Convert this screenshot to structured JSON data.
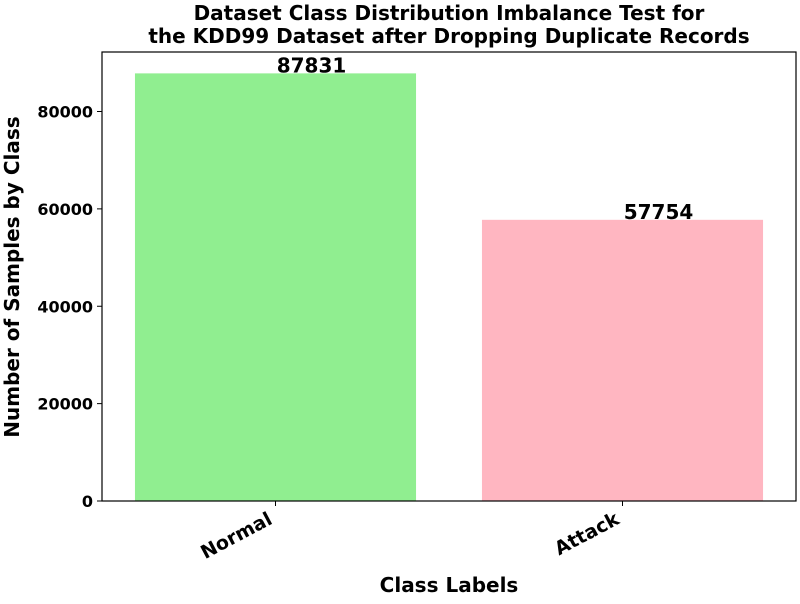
{
  "chart_data": {
    "type": "bar",
    "title": [
      "Dataset Class Distribution Imbalance Test for",
      "the KDD99 Dataset after Dropping Duplicate Records"
    ],
    "xlabel": "Class Labels",
    "ylabel": "Number of Samples by Class",
    "categories": [
      "Normal",
      "Attack"
    ],
    "values": [
      87831,
      57754
    ],
    "data_labels": [
      "87831",
      "57754"
    ],
    "colors": [
      "#90ee90",
      "#ffb6c1"
    ],
    "ylim": [
      0,
      92222
    ],
    "yticks": [
      0,
      20000,
      40000,
      60000,
      80000
    ],
    "ytick_labels": [
      "0",
      "20000",
      "40000",
      "60000",
      "80000"
    ],
    "grid": false,
    "legend": "none"
  }
}
